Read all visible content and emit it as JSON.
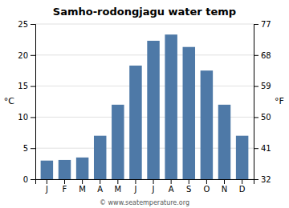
{
  "chart_data": {
    "type": "bar",
    "title": "Samho-rodongjagu water temp",
    "categories": [
      "J",
      "F",
      "M",
      "A",
      "M",
      "J",
      "J",
      "A",
      "S",
      "O",
      "N",
      "D"
    ],
    "values": [
      3.0,
      3.1,
      3.5,
      7.0,
      12.0,
      18.3,
      22.3,
      23.3,
      21.3,
      17.5,
      12.0,
      7.0
    ],
    "ylabel": "°C",
    "y2label": "°F",
    "ylim": [
      0,
      25
    ],
    "yticks": [
      0,
      5,
      10,
      15,
      20,
      25
    ],
    "y2lim": [
      32,
      77
    ],
    "y2ticks": [
      32,
      41,
      50,
      59,
      68,
      77
    ],
    "grid": true,
    "annotations": [
      "© www.seatemperature.org"
    ]
  }
}
